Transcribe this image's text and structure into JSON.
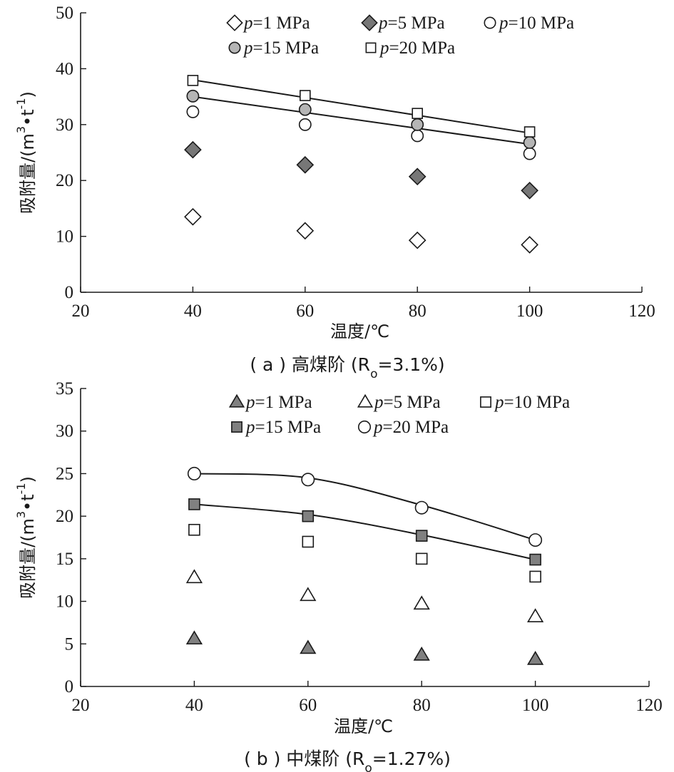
{
  "chart_data": [
    {
      "type": "scatter",
      "caption": "( a ) 高煤阶 (R",
      "caption_sub": "o",
      "caption_tail": "=3.1%)",
      "xlabel": "温度/℃",
      "ylabel_main": "吸附量/(m",
      "ylabel_sup1": "3",
      "ylabel_mid": "•t",
      "ylabel_sup2": "-1",
      "ylabel_end": ")",
      "xlim": [
        20,
        120
      ],
      "ylim": [
        0,
        50
      ],
      "xticks": [
        20,
        40,
        60,
        80,
        100,
        120
      ],
      "yticks": [
        0,
        10,
        20,
        30,
        40,
        50
      ],
      "grid": false,
      "legend_placement": "top",
      "series": [
        {
          "name": "p",
          "label_tail": "=1 MPa",
          "marker": "diamond",
          "fill": "#ffffff",
          "x": [
            40,
            60,
            80,
            100
          ],
          "y": [
            13.5,
            11,
            9.3,
            8.5
          ]
        },
        {
          "name": "p",
          "label_tail": "=5 MPa",
          "marker": "diamond",
          "fill": "#777777",
          "x": [
            40,
            60,
            80,
            100
          ],
          "y": [
            25.5,
            22.8,
            20.7,
            18.2
          ]
        },
        {
          "name": "p",
          "label_tail": "=10 MPa",
          "marker": "circle",
          "fill": "#ffffff",
          "x": [
            40,
            60,
            80,
            100
          ],
          "y": [
            32.3,
            30,
            28,
            24.8
          ]
        },
        {
          "name": "p",
          "label_tail": "=15 MPa",
          "marker": "circle",
          "fill": "#b5b5b5",
          "x": [
            40,
            60,
            80,
            100
          ],
          "y": [
            35.1,
            32.7,
            30,
            26.8
          ]
        },
        {
          "name": "p",
          "label_tail": "=20 MPa",
          "marker": "square",
          "fill": "#ffffff",
          "x": [
            40,
            60,
            80,
            100
          ],
          "y": [
            37.9,
            35.2,
            32,
            28.7
          ]
        }
      ],
      "fit_lines": [
        {
          "x": [
            40,
            100
          ],
          "y": [
            38,
            28.5
          ],
          "curve": false
        },
        {
          "x": [
            40,
            100
          ],
          "y": [
            35,
            26.5
          ],
          "curve": false
        }
      ]
    },
    {
      "type": "scatter",
      "caption": "( b ) 中煤阶 (R",
      "caption_sub": "o",
      "caption_tail": "=1.27%)",
      "xlabel": "温度/℃",
      "ylabel_main": "吸附量/(m",
      "ylabel_sup1": "3",
      "ylabel_mid": "•t",
      "ylabel_sup2": "-1",
      "ylabel_end": ")",
      "xlim": [
        20,
        120
      ],
      "ylim": [
        0,
        35
      ],
      "xticks": [
        20,
        40,
        60,
        80,
        100,
        120
      ],
      "yticks": [
        0,
        5,
        10,
        15,
        20,
        25,
        30,
        35
      ],
      "grid": false,
      "legend_placement": "top",
      "series": [
        {
          "name": "p",
          "label_tail": "=1 MPa",
          "marker": "triangle",
          "fill": "#808080",
          "x": [
            40,
            60,
            80,
            100
          ],
          "y": [
            5.6,
            4.5,
            3.7,
            3.2
          ]
        },
        {
          "name": "p",
          "label_tail": "=5 MPa",
          "marker": "triangle",
          "fill": "#ffffff",
          "x": [
            40,
            60,
            80,
            100
          ],
          "y": [
            12.8,
            10.7,
            9.7,
            8.2
          ]
        },
        {
          "name": "p",
          "label_tail": "=10 MPa",
          "marker": "square",
          "fill": "#ffffff",
          "x": [
            40,
            60,
            80,
            100
          ],
          "y": [
            18.4,
            17,
            15,
            12.9
          ]
        },
        {
          "name": "p",
          "label_tail": "=15 MPa",
          "marker": "square",
          "fill": "#808080",
          "x": [
            40,
            60,
            80,
            100
          ],
          "y": [
            21.4,
            20,
            17.7,
            14.9
          ]
        },
        {
          "name": "p",
          "label_tail": "=20 MPa",
          "marker": "circle",
          "fill": "#ffffff",
          "x": [
            40,
            60,
            80,
            100
          ],
          "y": [
            25,
            24.3,
            21,
            17.2
          ]
        }
      ],
      "fit_lines": [
        {
          "x": [
            40,
            60,
            80,
            100
          ],
          "y": [
            25,
            24.5,
            21.3,
            17.2
          ],
          "curve": true
        },
        {
          "x": [
            40,
            60,
            80,
            100
          ],
          "y": [
            21.4,
            20.2,
            17.8,
            14.9
          ],
          "curve": true
        }
      ]
    }
  ]
}
